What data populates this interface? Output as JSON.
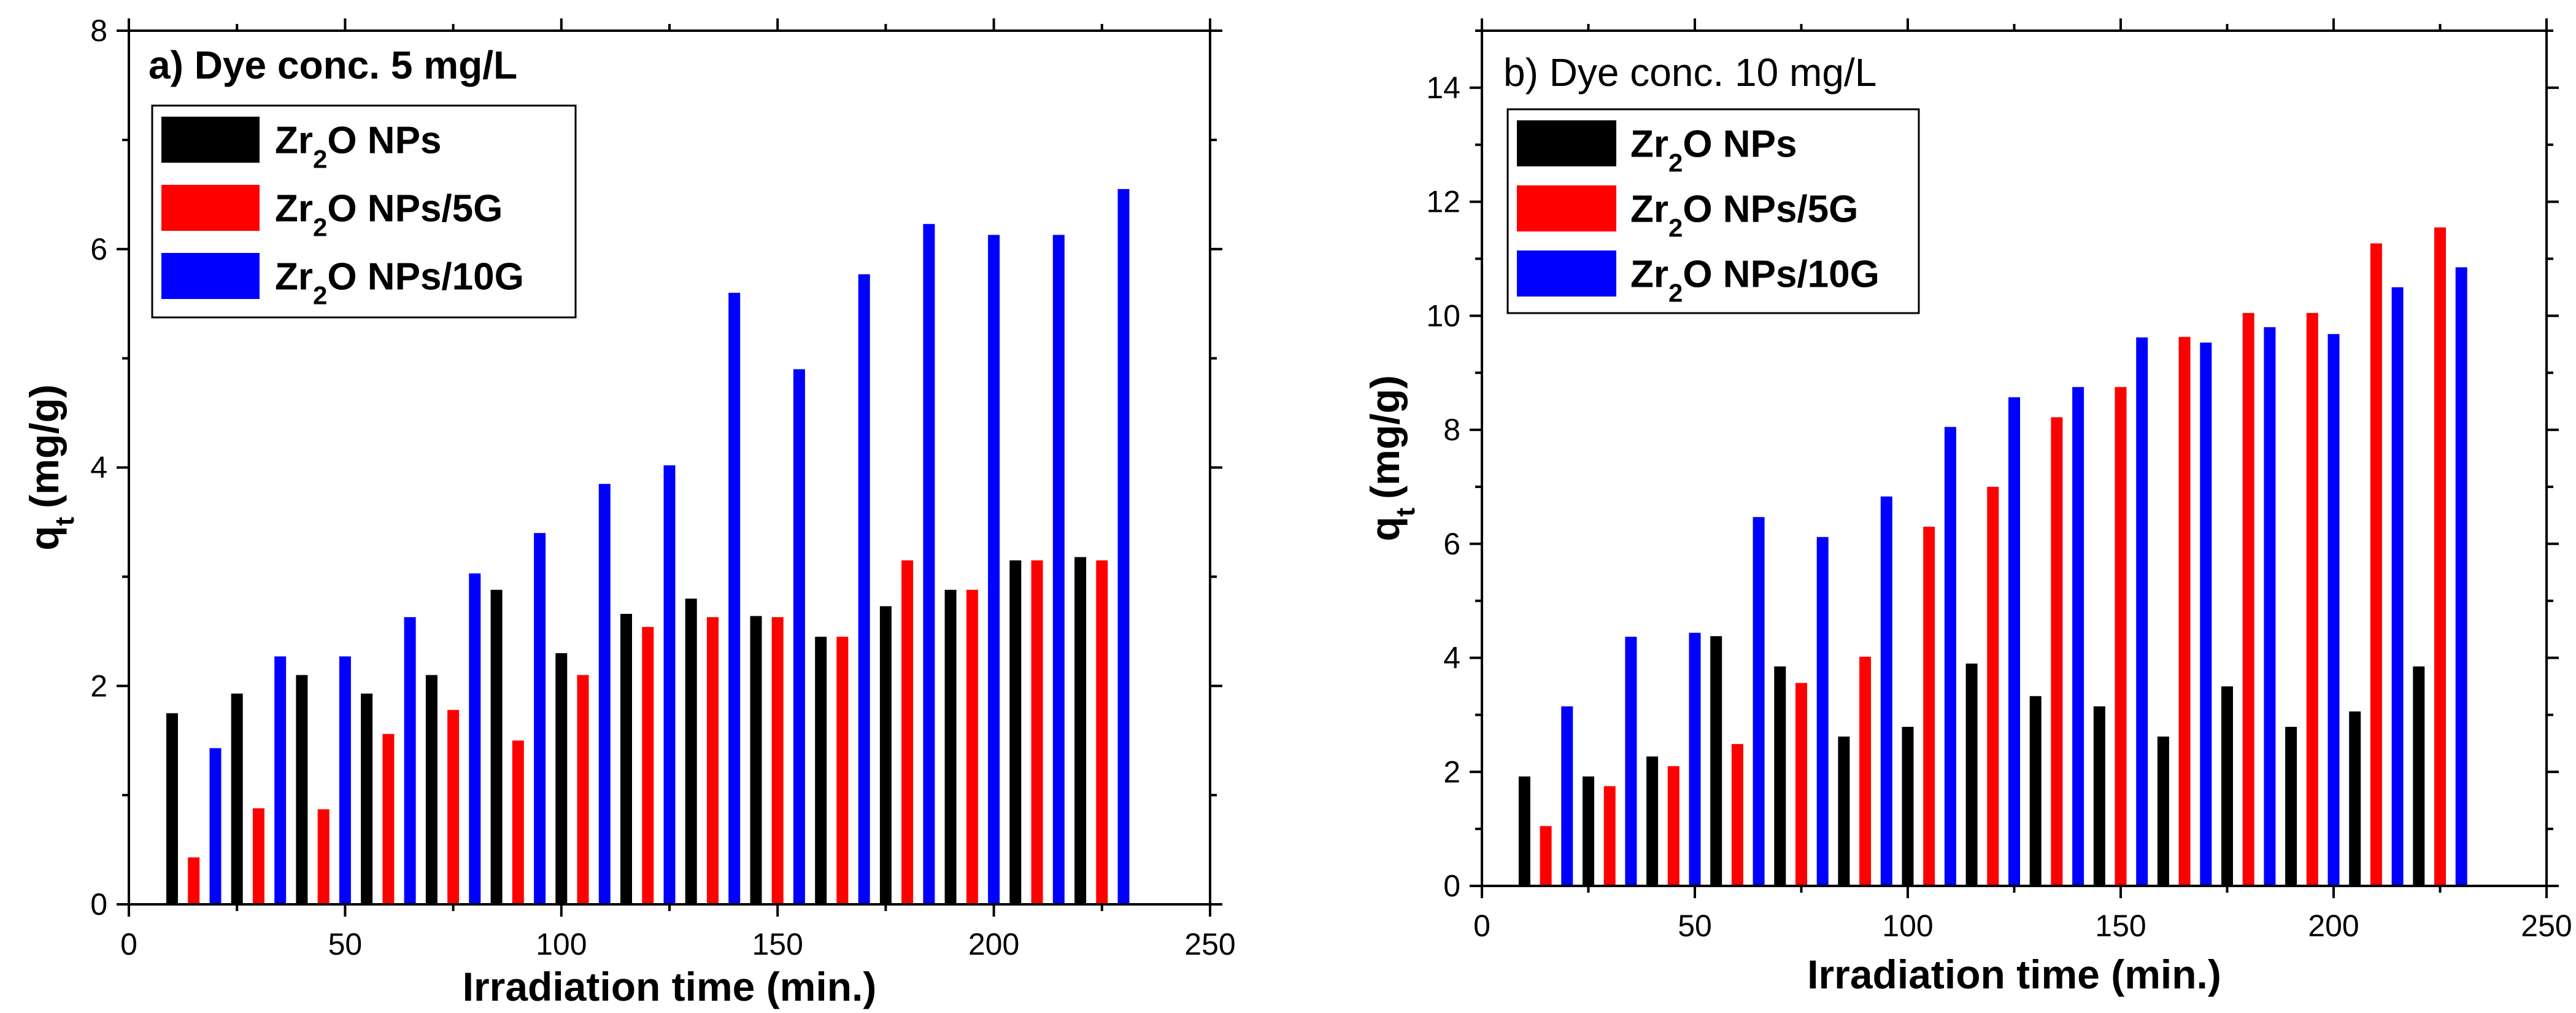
{
  "chart_data": [
    {
      "type": "bar",
      "title": "a) Dye conc. 5 mg/L",
      "xlabel": "Irradiation time (min.)",
      "ylabel_main": "q",
      "ylabel_sub": "t",
      "ylabel_unit": "(mg/g)",
      "xlim": [
        0,
        250
      ],
      "ylim": [
        0,
        8
      ],
      "xticks": [
        0,
        50,
        100,
        150,
        200,
        250
      ],
      "yticks": [
        0,
        2,
        4,
        6,
        8
      ],
      "x": [
        15,
        30,
        45,
        60,
        75,
        90,
        105,
        120,
        135,
        150,
        165,
        180,
        195,
        210,
        225
      ],
      "series": [
        {
          "name": "Zr2O NPs",
          "legend_main": "Zr",
          "legend_sub": "2",
          "legend_rest": "O NPs",
          "color": "#000000",
          "values": [
            1.75,
            1.93,
            2.1,
            1.93,
            2.1,
            2.88,
            2.3,
            2.66,
            2.8,
            2.64,
            2.45,
            2.73,
            2.88,
            3.15,
            3.18
          ]
        },
        {
          "name": "Zr2O NPs/5G",
          "legend_main": "Zr",
          "legend_sub": "2",
          "legend_rest": "O NPs/5G",
          "color": "#ff0000",
          "values": [
            0.43,
            0.88,
            0.87,
            1.56,
            1.78,
            1.5,
            2.1,
            2.54,
            2.63,
            2.63,
            2.45,
            3.15,
            2.88,
            3.15,
            3.15
          ]
        },
        {
          "name": "Zr2O NPs/10G",
          "legend_main": "Zr",
          "legend_sub": "2",
          "legend_rest": "O NPs/10G",
          "color": "#0000ff",
          "values": [
            1.43,
            2.27,
            2.27,
            2.63,
            3.03,
            3.4,
            3.85,
            4.02,
            5.6,
            4.9,
            5.77,
            6.23,
            6.13,
            6.13,
            6.55
          ]
        }
      ]
    },
    {
      "type": "bar",
      "title": "b) Dye conc. 10 mg/L",
      "xlabel": "Irradiation time (min.)",
      "ylabel_main": "q",
      "ylabel_sub": "t",
      "ylabel_unit": "(mg/g)",
      "xlim": [
        0,
        250
      ],
      "ylim": [
        0,
        15
      ],
      "xticks": [
        0,
        50,
        100,
        150,
        200,
        250
      ],
      "yticks": [
        0,
        2,
        4,
        6,
        8,
        10,
        12,
        14
      ],
      "x": [
        15,
        30,
        45,
        60,
        75,
        90,
        105,
        120,
        135,
        150,
        165,
        180,
        195,
        210,
        225
      ],
      "series": [
        {
          "name": "Zr2O NPs",
          "legend_main": "Zr",
          "legend_sub": "2",
          "legend_rest": "O NPs",
          "color": "#000000",
          "values": [
            1.92,
            1.92,
            2.27,
            4.38,
            3.85,
            2.62,
            2.79,
            3.9,
            3.33,
            3.15,
            2.62,
            3.5,
            2.79,
            3.06,
            3.85
          ]
        },
        {
          "name": "Zr2O NPs/5G",
          "legend_main": "Zr",
          "legend_sub": "2",
          "legend_rest": "O NPs/5G",
          "color": "#ff0000",
          "values": [
            1.05,
            1.75,
            2.1,
            2.49,
            3.56,
            4.02,
            6.3,
            7.0,
            8.22,
            8.75,
            9.63,
            10.05,
            10.05,
            11.27,
            11.55
          ]
        },
        {
          "name": "Zr2O NPs/10G",
          "legend_main": "Zr",
          "legend_sub": "2",
          "legend_rest": "O NPs/10G",
          "color": "#0000ff",
          "values": [
            3.15,
            4.37,
            4.44,
            6.47,
            6.12,
            6.83,
            8.05,
            8.57,
            8.75,
            9.62,
            9.53,
            9.8,
            9.68,
            10.5,
            10.85
          ]
        }
      ]
    }
  ]
}
